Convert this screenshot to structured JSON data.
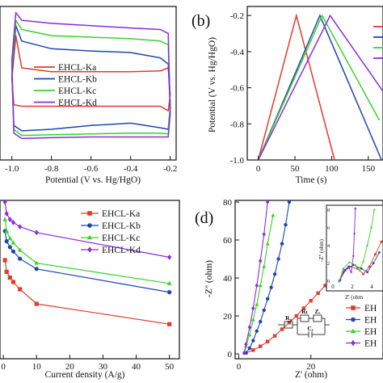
{
  "chart_data": [
    {
      "type": "line",
      "panel": "a",
      "xlabel": "Potential (V vs. Hg/HgO)",
      "ylabel": "",
      "xlim": [
        -1.06,
        -0.17
      ],
      "ylim": [
        -1.0,
        1.0
      ],
      "xticks": [
        -1.0,
        -0.8,
        -0.6,
        -0.4,
        -0.2
      ],
      "xtick_labels": [
        "-1.0",
        "-0.8",
        "-0.6",
        "-0.4",
        "-0.2"
      ],
      "legend": "center",
      "series": [
        {
          "name": "EHCL-Ka",
          "color": "#e23b2e",
          "x": [
            -1.0,
            -0.98,
            -0.95,
            -0.8,
            -0.6,
            -0.4,
            -0.25,
            -0.21,
            -0.2,
            -0.21,
            -0.25,
            -0.4,
            -0.6,
            -0.8,
            -0.95,
            -0.99,
            -1.0
          ],
          "y": [
            0.06,
            0.62,
            0.2,
            0.15,
            0.15,
            0.15,
            0.16,
            0.2,
            -0.15,
            -0.36,
            -0.3,
            -0.3,
            -0.3,
            -0.3,
            -0.3,
            -0.28,
            0.06
          ]
        },
        {
          "name": "EHCL-Kb",
          "color": "#1f45b3",
          "x": [
            -1.0,
            -0.98,
            -0.95,
            -0.8,
            -0.6,
            -0.4,
            -0.25,
            -0.21,
            -0.2,
            -0.21,
            -0.25,
            -0.4,
            -0.6,
            -0.8,
            -0.95,
            -0.99,
            -1.0
          ],
          "y": [
            0.1,
            0.75,
            0.55,
            0.45,
            0.42,
            0.4,
            0.33,
            0.25,
            -0.3,
            -0.6,
            -0.58,
            -0.52,
            -0.55,
            -0.6,
            -0.62,
            -0.55,
            0.1
          ]
        },
        {
          "name": "EHCL-Kc",
          "color": "#39d22a",
          "x": [
            -1.0,
            -0.98,
            -0.95,
            -0.8,
            -0.6,
            -0.4,
            -0.25,
            -0.21,
            -0.2,
            -0.21,
            -0.25,
            -0.4,
            -0.6,
            -0.8,
            -0.95,
            -0.99,
            -1.0
          ],
          "y": [
            0.2,
            0.82,
            0.7,
            0.62,
            0.6,
            0.58,
            0.55,
            0.5,
            -0.3,
            -0.66,
            -0.65,
            -0.65,
            -0.66,
            -0.67,
            -0.68,
            -0.6,
            0.2
          ]
        },
        {
          "name": "EHCL-Kd",
          "color": "#8a2be2",
          "x": [
            -1.0,
            -0.98,
            -0.95,
            -0.8,
            -0.6,
            -0.4,
            -0.25,
            -0.21,
            -0.2,
            -0.21,
            -0.25,
            -0.4,
            -0.6,
            -0.8,
            -0.95,
            -0.99,
            -1.0
          ],
          "y": [
            0.3,
            0.92,
            0.82,
            0.78,
            0.75,
            0.72,
            0.7,
            0.65,
            -0.4,
            -0.7,
            -0.7,
            -0.7,
            -0.7,
            -0.71,
            -0.72,
            -0.65,
            0.3
          ]
        }
      ]
    },
    {
      "type": "line",
      "panel": "b",
      "panel_label": "(b)",
      "xlabel": "Time (s)",
      "ylabel": "Potential (V vs. Hg/HgO)",
      "xlim": [
        -15,
        170
      ],
      "ylim": [
        -1.0,
        -0.15
      ],
      "xticks": [
        0,
        50,
        100,
        150
      ],
      "yticks": [
        -1.0,
        -0.8,
        -0.6,
        -0.4,
        -0.2
      ],
      "xtick_labels": [
        "0",
        "50",
        "100",
        "150"
      ],
      "ytick_labels": [
        "-1.0",
        "-0.8",
        "-0.6",
        "-0.4",
        "-0.2"
      ],
      "series": [
        {
          "name": "EHCL-Ka",
          "color": "#e23b2e",
          "x": [
            0,
            52,
            104
          ],
          "y": [
            -1.0,
            -0.2,
            -1.0
          ]
        },
        {
          "name": "EHCL-Kb",
          "color": "#1f45b3",
          "x": [
            0,
            84,
            168
          ],
          "y": [
            -1.0,
            -0.2,
            -1.0
          ]
        },
        {
          "name": "EHCL-Kc",
          "color": "#39d22a",
          "x": [
            0,
            87,
            165
          ],
          "y": [
            -1.0,
            -0.2,
            -0.78
          ]
        },
        {
          "name": "EHCL-Kd",
          "color": "#8a2be2",
          "x": [
            0,
            98,
            170
          ],
          "y": [
            -1.0,
            -0.2,
            -0.62
          ]
        }
      ]
    },
    {
      "type": "line",
      "panel": "c",
      "xlabel": "Current density (A/g)",
      "ylabel": "",
      "xlim": [
        -1,
        53
      ],
      "ylim": [
        0,
        100
      ],
      "xticks": [
        0,
        10,
        20,
        30,
        40,
        50
      ],
      "xtick_labels": [
        "0",
        "10",
        "20",
        "30",
        "40",
        "50"
      ],
      "legend": "top-right",
      "series": [
        {
          "name": "EHCL-Ka",
          "color": "#e23b2e",
          "marker": "square",
          "x": [
            0.5,
            1,
            2,
            3,
            5,
            10,
            50
          ],
          "y": [
            60,
            52,
            48,
            45,
            40,
            30,
            16
          ]
        },
        {
          "name": "EHCL-Kb",
          "color": "#1f45b3",
          "marker": "circle",
          "x": [
            0.5,
            1,
            2,
            3,
            5,
            10,
            50
          ],
          "y": [
            80,
            73,
            69,
            66,
            61,
            54,
            38
          ]
        },
        {
          "name": "EHCL-Kc",
          "color": "#39d22a",
          "marker": "triangle",
          "x": [
            0.5,
            1,
            2,
            3,
            5,
            10,
            50
          ],
          "y": [
            88,
            80,
            75,
            72,
            67,
            58,
            44
          ]
        },
        {
          "name": "EHCL-Kd",
          "color": "#8a2be2",
          "marker": "diamond",
          "x": [
            0.5,
            1,
            2,
            3,
            5,
            10,
            50
          ],
          "y": [
            100,
            92,
            88,
            86,
            83,
            79,
            62
          ]
        }
      ]
    },
    {
      "type": "scatter",
      "panel": "d",
      "panel_label": "(d)",
      "xlabel": "Z' (ohm)",
      "ylabel": "-Z'' (ohm)",
      "xlim": [
        -1,
        40
      ],
      "ylim": [
        0,
        80
      ],
      "xticks": [
        0,
        20
      ],
      "yticks": [
        0,
        20,
        40,
        60,
        80
      ],
      "xtick_labels": [
        "0",
        "20"
      ],
      "ytick_labels": [
        "0",
        "20",
        "40",
        "60",
        "80"
      ],
      "legend_entries": [
        "EH",
        "EH",
        "EH",
        "EH"
      ],
      "series": [
        {
          "name": "EHCL-Ka",
          "color": "#e23b2e",
          "marker": "square",
          "x": [
            2,
            4,
            6,
            8,
            10,
            12,
            14,
            16,
            18,
            20,
            22,
            24,
            26,
            28,
            30,
            32.5
          ],
          "y": [
            0.5,
            2,
            4,
            6.5,
            9.5,
            13,
            16.5,
            20,
            24,
            28,
            32,
            36,
            40.5,
            45,
            50,
            55
          ]
        },
        {
          "name": "EHCL-Kb",
          "color": "#1f45b3",
          "marker": "circle",
          "x": [
            2,
            3,
            4,
            5,
            6,
            7,
            8,
            9,
            10,
            11,
            12,
            13,
            14
          ],
          "y": [
            0.5,
            3,
            7,
            12,
            17,
            23,
            29,
            35,
            42,
            50,
            58,
            68,
            80
          ]
        },
        {
          "name": "EHCL-Kc",
          "color": "#39d22a",
          "marker": "triangle",
          "x": [
            1.5,
            2,
            3,
            4,
            5,
            6,
            7,
            8,
            9.5
          ],
          "y": [
            0.5,
            4,
            10,
            18,
            26,
            36,
            46,
            58,
            73
          ]
        },
        {
          "name": "EHCL-Kd",
          "color": "#8a2be2",
          "marker": "diamond",
          "x": [
            1.5,
            2,
            3,
            4,
            5,
            6,
            7,
            8
          ],
          "y": [
            0.5,
            5,
            14,
            24,
            36,
            49,
            63,
            80
          ]
        }
      ]
    }
  ],
  "inset": {
    "xlabel": "Z' (ohm",
    "ylabel": "-Z'' (ohm)",
    "xtick_labels": [
      "0",
      "2",
      "4"
    ],
    "ytick_labels": [
      "0",
      "2",
      "4",
      "6",
      "8"
    ]
  },
  "circuit": {
    "labels": [
      "R₀",
      "Rₜ",
      "Zₑ",
      "Cₑ"
    ]
  }
}
